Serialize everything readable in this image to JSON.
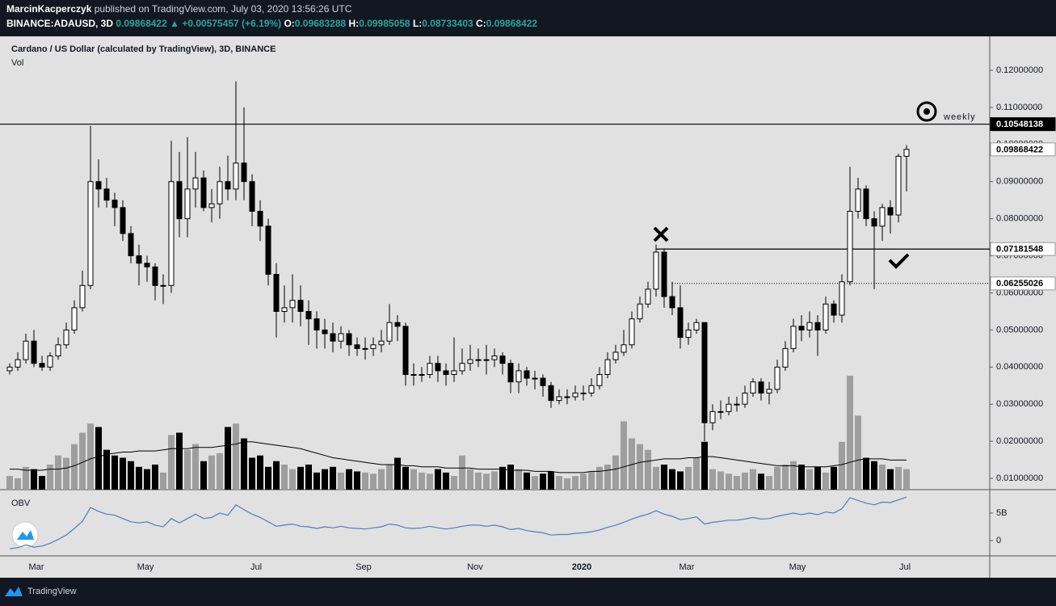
{
  "header": {
    "author": "MarcinKacperczyk",
    "published": "published on TradingView.com, July 03, 2020 13:56:26 UTC",
    "symbol": "BINANCE:ADAUSD, 3D",
    "last": "0.09868422",
    "change": "▲ +0.00575457 (+6.19%)",
    "ohlc": [
      "O:",
      "0.09683288",
      "H:",
      "0.09985058",
      "L:",
      "0.08733403",
      "C:",
      "0.09868422"
    ]
  },
  "footer": "TradingView",
  "chart_data": {
    "type": "candlestick",
    "title": "Cardano / US Dollar (calculated by TradingView), 3D, BINANCE",
    "up_color": "#ffffff",
    "down_color": "#000000",
    "grid": false,
    "xlim": [
      -1.2,
      121.3
    ],
    "xticks": [
      {
        "value": 3.3,
        "label": "Mar"
      },
      {
        "value": 16.8,
        "label": "May"
      },
      {
        "value": 30.5,
        "label": "Jul"
      },
      {
        "value": 43.8,
        "label": "Sep"
      },
      {
        "value": 57.6,
        "label": "Nov"
      },
      {
        "value": 70.8,
        "label": "2020"
      },
      {
        "value": 83.8,
        "label": "Mar"
      },
      {
        "value": 97.5,
        "label": "May"
      },
      {
        "value": 110.8,
        "label": "Jul"
      }
    ],
    "ylim": [
      0.00696,
      0.12915
    ],
    "yticks": [
      {
        "value": 0.01,
        "label": "0.01000000"
      },
      {
        "value": 0.02,
        "label": "0.02000000"
      },
      {
        "value": 0.03,
        "label": "0.03000000"
      },
      {
        "value": 0.04,
        "label": "0.04000000"
      },
      {
        "value": 0.05,
        "label": "0.05000000"
      },
      {
        "value": 0.06,
        "label": "0.06000000"
      },
      {
        "value": 0.07,
        "label": "0.07000000"
      },
      {
        "value": 0.08,
        "label": "0.08000000"
      },
      {
        "value": 0.09,
        "label": "0.09000000"
      },
      {
        "value": 0.1,
        "label": "0.10000000"
      },
      {
        "value": 0.11,
        "label": "0.11000000"
      },
      {
        "value": 0.12,
        "label": "0.12000000"
      }
    ],
    "open": [
      0.039,
      0.04,
      0.042,
      0.047,
      0.041,
      0.04,
      0.043,
      0.046,
      0.05,
      0.056,
      0.062,
      0.09,
      0.088,
      0.085,
      0.083,
      0.076,
      0.07,
      0.068,
      0.067,
      0.062,
      0.062,
      0.09,
      0.08,
      0.088,
      0.091,
      0.083,
      0.084,
      0.09,
      0.088,
      0.095,
      0.09,
      0.082,
      0.078,
      0.065,
      0.055,
      0.056,
      0.058,
      0.055,
      0.053,
      0.05,
      0.049,
      0.047,
      0.049,
      0.046,
      0.045,
      0.045,
      0.046,
      0.047,
      0.052,
      0.051,
      0.038,
      0.038,
      0.038,
      0.041,
      0.039,
      0.038,
      0.039,
      0.041,
      0.042,
      0.042,
      0.042,
      0.043,
      0.041,
      0.036,
      0.039,
      0.037,
      0.037,
      0.035,
      0.031,
      0.032,
      0.032,
      0.033,
      0.033,
      0.035,
      0.038,
      0.042,
      0.044,
      0.046,
      0.053,
      0.057,
      0.061,
      0.071,
      0.059,
      0.056,
      0.048,
      0.05,
      0.052,
      0.025,
      0.028,
      0.028,
      0.03,
      0.03,
      0.033,
      0.036,
      0.033,
      0.034,
      0.04,
      0.045,
      0.051,
      0.05,
      0.052,
      0.05,
      0.057,
      0.054,
      0.063,
      0.082,
      0.088,
      0.08,
      0.078,
      0.083,
      0.081,
      0.09683288
    ],
    "close": [
      0.04,
      0.042,
      0.047,
      0.041,
      0.04,
      0.043,
      0.046,
      0.05,
      0.056,
      0.062,
      0.09,
      0.088,
      0.085,
      0.083,
      0.076,
      0.07,
      0.068,
      0.067,
      0.062,
      0.062,
      0.09,
      0.08,
      0.088,
      0.091,
      0.083,
      0.084,
      0.09,
      0.088,
      0.095,
      0.09,
      0.082,
      0.078,
      0.065,
      0.055,
      0.056,
      0.058,
      0.055,
      0.053,
      0.05,
      0.049,
      0.047,
      0.049,
      0.046,
      0.045,
      0.045,
      0.046,
      0.047,
      0.052,
      0.051,
      0.038,
      0.038,
      0.038,
      0.041,
      0.039,
      0.038,
      0.039,
      0.041,
      0.042,
      0.042,
      0.042,
      0.043,
      0.041,
      0.036,
      0.039,
      0.037,
      0.037,
      0.035,
      0.031,
      0.032,
      0.032,
      0.033,
      0.033,
      0.035,
      0.038,
      0.042,
      0.044,
      0.046,
      0.053,
      0.057,
      0.061,
      0.071,
      0.059,
      0.056,
      0.048,
      0.05,
      0.052,
      0.025,
      0.028,
      0.028,
      0.03,
      0.03,
      0.033,
      0.036,
      0.033,
      0.034,
      0.04,
      0.045,
      0.051,
      0.05,
      0.052,
      0.05,
      0.057,
      0.054,
      0.063,
      0.082,
      0.088,
      0.08,
      0.078,
      0.083,
      0.081,
      0.09683288,
      0.09868422
    ],
    "high": [
      0.041,
      0.044,
      0.049,
      0.05,
      0.043,
      0.044,
      0.048,
      0.052,
      0.058,
      0.066,
      0.105,
      0.096,
      0.091,
      0.087,
      0.085,
      0.078,
      0.073,
      0.07,
      0.068,
      0.065,
      0.101,
      0.098,
      0.102,
      0.098,
      0.093,
      0.088,
      0.094,
      0.097,
      0.117,
      0.11,
      0.092,
      0.085,
      0.08,
      0.068,
      0.062,
      0.065,
      0.062,
      0.058,
      0.055,
      0.053,
      0.052,
      0.051,
      0.05,
      0.048,
      0.048,
      0.048,
      0.05,
      0.057,
      0.054,
      0.052,
      0.041,
      0.04,
      0.043,
      0.043,
      0.041,
      0.048,
      0.045,
      0.046,
      0.045,
      0.046,
      0.045,
      0.044,
      0.042,
      0.041,
      0.04,
      0.039,
      0.038,
      0.036,
      0.034,
      0.034,
      0.035,
      0.035,
      0.037,
      0.04,
      0.044,
      0.046,
      0.05,
      0.055,
      0.059,
      0.063,
      0.073,
      0.072,
      0.063,
      0.062,
      0.052,
      0.053,
      0.052,
      0.03,
      0.031,
      0.032,
      0.032,
      0.035,
      0.037,
      0.037,
      0.036,
      0.042,
      0.047,
      0.053,
      0.054,
      0.055,
      0.054,
      0.059,
      0.058,
      0.065,
      0.094,
      0.091,
      0.089,
      0.082,
      0.084,
      0.085,
      0.0975,
      0.09985058
    ],
    "low": [
      0.038,
      0.039,
      0.041,
      0.04,
      0.039,
      0.039,
      0.042,
      0.045,
      0.049,
      0.055,
      0.061,
      0.083,
      0.083,
      0.078,
      0.074,
      0.068,
      0.062,
      0.063,
      0.058,
      0.057,
      0.06,
      0.075,
      0.075,
      0.083,
      0.082,
      0.079,
      0.08,
      0.085,
      0.085,
      0.085,
      0.078,
      0.074,
      0.062,
      0.048,
      0.052,
      0.052,
      0.051,
      0.046,
      0.045,
      0.045,
      0.044,
      0.045,
      0.043,
      0.043,
      0.042,
      0.043,
      0.044,
      0.046,
      0.047,
      0.035,
      0.035,
      0.036,
      0.037,
      0.036,
      0.035,
      0.036,
      0.038,
      0.039,
      0.04,
      0.038,
      0.04,
      0.038,
      0.033,
      0.033,
      0.035,
      0.034,
      0.032,
      0.029,
      0.03,
      0.03,
      0.031,
      0.031,
      0.032,
      0.034,
      0.037,
      0.041,
      0.043,
      0.045,
      0.052,
      0.056,
      0.059,
      0.056,
      0.054,
      0.045,
      0.046,
      0.049,
      0.02,
      0.023,
      0.026,
      0.027,
      0.028,
      0.029,
      0.032,
      0.031,
      0.03,
      0.033,
      0.039,
      0.044,
      0.047,
      0.048,
      0.043,
      0.049,
      0.052,
      0.052,
      0.062,
      0.08,
      0.078,
      0.061,
      0.074,
      0.076,
      0.079,
      0.08733403
    ],
    "levels": [
      {
        "value": 0.10548138,
        "style": "solid"
      },
      {
        "value": 0.07181548,
        "style": "solid"
      },
      {
        "value": 0.06255026,
        "style": "dotted"
      }
    ],
    "annotation": "weekly",
    "volume": {
      "label": "Vol",
      "lim": [
        0,
        398
      ],
      "up_color": "#9e9e9e",
      "down_color": "#000000",
      "values": [
        12,
        10,
        20,
        18,
        12,
        22,
        30,
        28,
        40,
        50,
        58,
        55,
        35,
        30,
        28,
        25,
        20,
        18,
        22,
        15,
        48,
        50,
        35,
        40,
        25,
        30,
        32,
        55,
        58,
        45,
        28,
        30,
        20,
        25,
        22,
        18,
        20,
        22,
        15,
        18,
        20,
        15,
        18,
        16,
        15,
        14,
        18,
        22,
        28,
        20,
        18,
        15,
        14,
        18,
        15,
        12,
        30,
        18,
        15,
        14,
        16,
        20,
        22,
        18,
        15,
        12,
        14,
        16,
        12,
        10,
        12,
        14,
        16,
        20,
        22,
        30,
        60,
        45,
        40,
        35,
        20,
        22,
        18,
        16,
        20,
        28,
        42,
        18,
        16,
        14,
        12,
        15,
        18,
        14,
        12,
        20,
        22,
        25,
        22,
        18,
        20,
        15,
        20,
        42,
        100,
        65,
        28,
        25,
        22,
        18,
        20,
        18
      ],
      "ma": [
        18,
        18,
        17,
        17,
        17,
        18,
        18,
        19,
        21,
        24,
        27,
        29,
        31,
        32,
        33,
        33,
        34,
        34,
        34,
        35,
        36,
        36,
        36,
        37,
        37,
        37,
        38,
        39,
        40,
        42,
        42,
        41,
        40,
        39,
        38,
        37,
        36,
        34,
        32,
        30,
        28,
        27,
        26,
        25,
        24,
        23,
        22,
        22,
        22,
        21,
        21,
        20,
        20,
        20,
        19,
        19,
        19,
        19,
        18,
        18,
        18,
        18,
        17,
        17,
        17,
        16,
        16,
        16,
        15,
        15,
        15,
        15,
        16,
        16,
        17,
        18,
        20,
        22,
        24,
        25,
        26,
        27,
        27,
        27,
        28,
        28,
        29,
        29,
        28,
        27,
        26,
        25,
        24,
        23,
        22,
        21,
        21,
        21,
        20,
        20,
        20,
        20,
        21,
        22,
        24,
        26,
        27,
        27,
        27,
        26,
        26,
        26
      ]
    },
    "obv": {
      "label": "OBV",
      "color": "#4a7fc1",
      "lim": [
        -2800000000.0,
        9260000000.0
      ],
      "ticks": [
        {
          "value": 5000000000.0,
          "label": "5B"
        },
        0
      ],
      "values": [
        -1500000000.0,
        -1300000000.0,
        -800000000.0,
        -1200000000.0,
        -1000000000.0,
        -500000000.0,
        200000000.0,
        1000000000.0,
        2200000000.0,
        3500000000.0,
        6000000000.0,
        5300000000.0,
        4800000000.0,
        4600000000.0,
        4000000000.0,
        3400000000.0,
        3200000000.0,
        3400000000.0,
        2800000000.0,
        2500000000.0,
        4000000000.0,
        3200000000.0,
        4000000000.0,
        4800000000.0,
        4000000000.0,
        4200000000.0,
        5000000000.0,
        4600000000.0,
        6500000000.0,
        5600000000.0,
        4800000000.0,
        4200000000.0,
        3400000000.0,
        2600000000.0,
        2800000000.0,
        3000000000.0,
        2600000000.0,
        2500000000.0,
        2200000000.0,
        2500000000.0,
        2300000000.0,
        2600000000.0,
        2300000000.0,
        2200000000.0,
        2100000000.0,
        2300000000.0,
        2500000000.0,
        3000000000.0,
        2800000000.0,
        2300000000.0,
        2200000000.0,
        2300000000.0,
        2600000000.0,
        2300000000.0,
        2100000000.0,
        2300000000.0,
        2600000000.0,
        2800000000.0,
        2800000000.0,
        2600000000.0,
        2800000000.0,
        2500000000.0,
        2000000000.0,
        2200000000.0,
        1800000000.0,
        1600000000.0,
        1400000000.0,
        1000000000.0,
        1100000000.0,
        1100000000.0,
        1300000000.0,
        1400000000.0,
        1600000000.0,
        1900000000.0,
        2400000000.0,
        2800000000.0,
        3300000000.0,
        3900000000.0,
        4400000000.0,
        4800000000.0,
        5400000000.0,
        4800000000.0,
        4400000000.0,
        3800000000.0,
        4000000000.0,
        4300000000.0,
        3000000000.0,
        3300000000.0,
        3500000000.0,
        3700000000.0,
        3700000000.0,
        3900000000.0,
        4200000000.0,
        3900000000.0,
        4000000000.0,
        4400000000.0,
        4700000000.0,
        5000000000.0,
        4700000000.0,
        5000000000.0,
        4700000000.0,
        5200000000.0,
        5000000000.0,
        5800000000.0,
        7800000000.0,
        7300000000.0,
        6800000000.0,
        6500000000.0,
        7000000000.0,
        6900000000.0,
        7400000000.0,
        7900000000.0
      ]
    }
  }
}
